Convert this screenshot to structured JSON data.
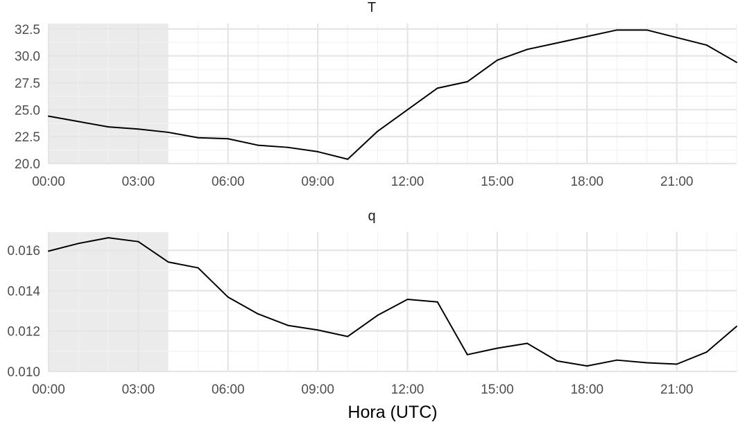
{
  "xlabel": "Hora (UTC)",
  "colors": {
    "line": "#000000",
    "shade": "#ebebeb",
    "grid_major": "#e5e5e5",
    "grid_minor": "#f2f2f2",
    "text": "#4d4d4d"
  },
  "chart_data": [
    {
      "type": "line",
      "title": "T",
      "xlabel": "",
      "ylabel": "",
      "x_unit": "hour",
      "xlim": [
        0,
        23
      ],
      "ylim": [
        20.0,
        33.0
      ],
      "grid": true,
      "shaded_interval": [
        0,
        4
      ],
      "x_ticks": [
        0,
        3,
        6,
        9,
        12,
        15,
        18,
        21
      ],
      "x_tick_labels": [
        "00:00",
        "03:00",
        "06:00",
        "09:00",
        "12:00",
        "15:00",
        "18:00",
        "21:00"
      ],
      "y_ticks": [
        20.0,
        22.5,
        25.0,
        27.5,
        30.0,
        32.5
      ],
      "y_tick_labels": [
        "20.0",
        "22.5",
        "25.0",
        "27.5",
        "30.0",
        "32.5"
      ],
      "x": [
        0,
        1,
        2,
        3,
        4,
        5,
        6,
        7,
        8,
        9,
        10,
        11,
        12,
        13,
        14,
        15,
        16,
        17,
        18,
        19,
        20,
        21,
        22,
        23
      ],
      "values": [
        24.4,
        23.9,
        23.4,
        23.2,
        22.9,
        22.4,
        22.3,
        21.7,
        21.5,
        21.1,
        20.4,
        23.0,
        25.0,
        27.0,
        27.6,
        29.6,
        30.6,
        31.2,
        31.8,
        32.4,
        32.4,
        31.7,
        31.0,
        29.4
      ]
    },
    {
      "type": "line",
      "title": "q",
      "xlabel": "Hora (UTC)",
      "ylabel": "",
      "x_unit": "hour",
      "xlim": [
        0,
        23
      ],
      "ylim": [
        0.01,
        0.0169
      ],
      "grid": true,
      "shaded_interval": [
        0,
        4
      ],
      "x_ticks": [
        0,
        3,
        6,
        9,
        12,
        15,
        18,
        21
      ],
      "x_tick_labels": [
        "00:00",
        "03:00",
        "06:00",
        "09:00",
        "12:00",
        "15:00",
        "18:00",
        "21:00"
      ],
      "y_ticks": [
        0.01,
        0.012,
        0.014,
        0.016
      ],
      "y_tick_labels": [
        "0.010",
        "0.012",
        "0.014",
        "0.016"
      ],
      "x": [
        0,
        1,
        2,
        3,
        4,
        5,
        6,
        7,
        8,
        9,
        10,
        11,
        12,
        13,
        14,
        15,
        16,
        17,
        18,
        19,
        20,
        21,
        22,
        23
      ],
      "values": [
        0.01596,
        0.01634,
        0.01662,
        0.01643,
        0.01542,
        0.01513,
        0.01368,
        0.01285,
        0.01228,
        0.01205,
        0.01173,
        0.01278,
        0.01357,
        0.01344,
        0.01083,
        0.01115,
        0.01139,
        0.01052,
        0.01027,
        0.01056,
        0.01043,
        0.01036,
        0.01096,
        0.01223
      ]
    }
  ]
}
